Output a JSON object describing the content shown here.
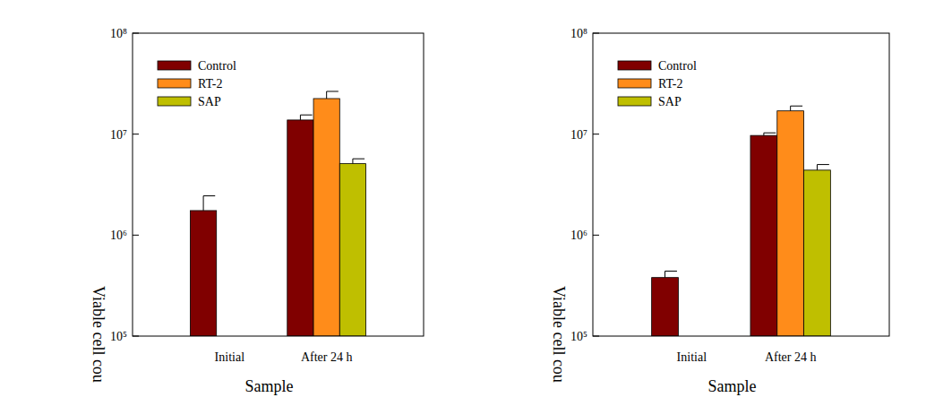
{
  "chart_data": [
    {
      "type": "bar",
      "log": "y",
      "legend": "upper left",
      "x_label": "Sample",
      "y_label": "Viable cell cou",
      "categories": [
        "Initial",
        "After 24 h"
      ],
      "ylim": [
        100000,
        100000000
      ],
      "yticks": [
        {
          "value": 100000,
          "label": "10⁵"
        },
        {
          "value": 1000000,
          "label": "10⁶"
        },
        {
          "value": 10000000,
          "label": "10⁷"
        },
        {
          "value": 100000000,
          "label": "10⁸"
        }
      ],
      "series": [
        {
          "name": "Control",
          "color": "#800000",
          "values": [
            1750000,
            13800000
          ],
          "errors": [
            700000,
            1700000
          ]
        },
        {
          "name": "RT-2",
          "color": "#ff8c1a",
          "values": [
            null,
            22500000
          ],
          "errors": [
            null,
            4000000
          ]
        },
        {
          "name": "SAP",
          "color": "#bfbf00",
          "values": [
            null,
            5100000
          ],
          "errors": [
            null,
            600000
          ]
        }
      ]
    },
    {
      "type": "bar",
      "log": "y",
      "legend": "upper left",
      "x_label": "Sample",
      "y_label": "Viable cell cou",
      "categories": [
        "Initial",
        "After 24 h"
      ],
      "ylim": [
        100000,
        100000000
      ],
      "yticks": [
        {
          "value": 100000,
          "label": "10⁵"
        },
        {
          "value": 1000000,
          "label": "10⁶"
        },
        {
          "value": 10000000,
          "label": "10⁷"
        },
        {
          "value": 100000000,
          "label": "10⁸"
        }
      ],
      "series": [
        {
          "name": "Control",
          "color": "#800000",
          "values": [
            380000,
            9700000
          ],
          "errors": [
            60000,
            600000
          ]
        },
        {
          "name": "RT-2",
          "color": "#ff8c1a",
          "values": [
            null,
            17000000
          ],
          "errors": [
            null,
            2000000
          ]
        },
        {
          "name": "SAP",
          "color": "#bfbf00",
          "values": [
            null,
            4400000
          ],
          "errors": [
            null,
            600000
          ]
        }
      ]
    }
  ]
}
